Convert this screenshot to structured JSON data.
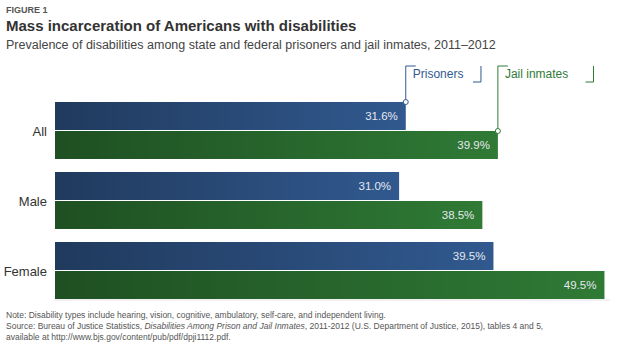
{
  "chart_data": {
    "type": "bar",
    "orientation": "horizontal",
    "figure_label": "FIGURE 1",
    "title": "Mass incarceration of Americans with disabilities",
    "subtitle": "Prevalence of disabilities among state and federal prisoners and jail inmates, 2011–2012",
    "categories": [
      "All",
      "Male",
      "Female"
    ],
    "series": [
      {
        "name": "Prisoners",
        "color": "#31598f",
        "values": [
          31.6,
          31.0,
          39.5
        ],
        "value_labels": [
          "31.6%",
          "31.0%",
          "39.5%"
        ]
      },
      {
        "name": "Jail inmates",
        "color": "#2f7a35",
        "values": [
          39.9,
          38.5,
          49.5
        ],
        "value_labels": [
          "39.9%",
          "38.5%",
          "49.5%"
        ]
      }
    ],
    "xlim": [
      0,
      50
    ],
    "data_labels": true,
    "tick_labels": false,
    "grid": false,
    "note": "Note: Disability types include hearing, vision, cognitive, ambulatory, self-care, and independent living.",
    "source": [
      "Source: Bureau of Justice Statistics, ",
      "Disabilities Among Prison and Jail Inmates",
      ", 2011-2012 (U.S. Department of Justice, 2015), tables 4 and 5,",
      "available at http://www.bjs.gov/content/pub/pdf/dpji1112.pdf."
    ]
  }
}
